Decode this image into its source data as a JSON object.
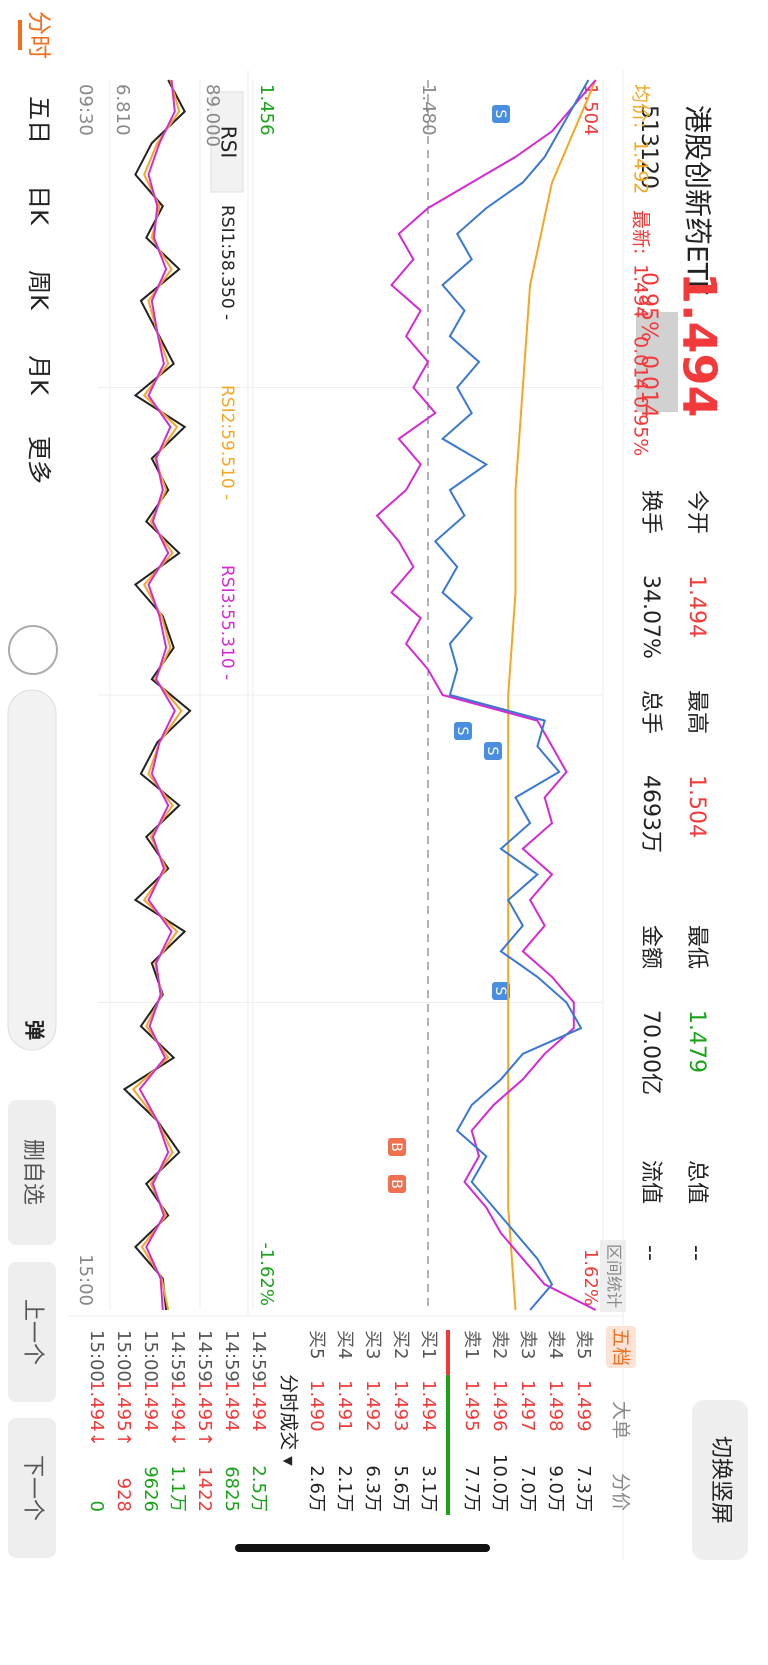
{
  "header": {
    "name": "港股创新药ETF",
    "price": "1.494",
    "code": "513120",
    "change_pct": "0.95%",
    "change": "0.014",
    "stats": [
      {
        "label": "今开",
        "value": "1.494"
      },
      {
        "label": "换手",
        "value": "34.07%"
      },
      {
        "label": "最高",
        "value": "1.504"
      },
      {
        "label": "总手",
        "value": "4693万"
      },
      {
        "label": "最低",
        "value": "1.479"
      },
      {
        "label": "金额",
        "value": "70.00亿"
      },
      {
        "label": "总值",
        "value": "--"
      },
      {
        "label": "流值",
        "value": "--"
      }
    ],
    "button": "切换竖屏"
  },
  "legend": {
    "avg_label": "均价:",
    "avg": "1.492",
    "last_label": "最新:",
    "last": "1.494",
    "change": "0.014",
    "pct": "0.95%"
  },
  "chart": {
    "type": "line",
    "ylim": [
      1.456,
      1.504
    ],
    "yticks": [
      1.504,
      {
        "value": 1.48,
        "label": "1.480"
      },
      1.456
    ],
    "right_labels": [
      "1.62%",
      "-1.62%"
    ],
    "range_button": "区间统计",
    "x_labels": [
      "09:30",
      "15:00"
    ],
    "grid": true,
    "series": [
      {
        "name": "均价",
        "color": "#f5a623",
        "values": [
          1.503,
          1.497,
          1.494,
          1.493,
          1.492,
          1.492,
          1.491,
          1.491,
          1.491,
          1.491,
          1.491,
          1.491,
          1.492
        ]
      },
      {
        "name": "purple",
        "color": "#d42ad4",
        "values": [
          1.503,
          1.5,
          1.497,
          1.492,
          1.486,
          1.48,
          1.476,
          1.478,
          1.475,
          1.479,
          1.477,
          1.48,
          1.478,
          1.481,
          1.476,
          1.479,
          1.477,
          1.473,
          1.476,
          1.478,
          1.475,
          1.479,
          1.477,
          1.48,
          1.482,
          1.495,
          1.497,
          1.499,
          1.496,
          1.497,
          1.493,
          1.497,
          1.494,
          1.496,
          1.493,
          1.497,
          1.5,
          1.5,
          1.496,
          1.493,
          1.489,
          1.486,
          1.487,
          1.485,
          1.488,
          1.49,
          1.493,
          1.496,
          1.503
        ]
      },
      {
        "name": "最新",
        "color": "#3a78d0",
        "values": [
          1.502,
          1.5,
          1.498,
          1.496,
          1.493,
          1.488,
          1.484,
          1.486,
          1.482,
          1.485,
          1.483,
          1.487,
          1.484,
          1.486,
          1.482,
          1.488,
          1.483,
          1.485,
          1.481,
          1.484,
          1.482,
          1.486,
          1.483,
          1.484,
          1.483,
          1.496,
          1.495,
          1.498,
          1.492,
          1.494,
          1.49,
          1.495,
          1.491,
          1.493,
          1.49,
          1.495,
          1.499,
          1.501,
          1.493,
          1.49,
          1.486,
          1.484,
          1.488,
          1.486,
          1.489,
          1.492,
          1.495,
          1.497,
          1.494
        ]
      }
    ]
  },
  "rsi": {
    "selector": "RSI",
    "legend": [
      "RSI1:58.350 -",
      "RSI2:59.510 -",
      "RSI3:55.310 -"
    ],
    "ylim": [
      6.81,
      89
    ],
    "yticks": [
      {
        "value": 89,
        "label": "89.000"
      },
      {
        "value": 6.81,
        "label": "6.810"
      }
    ],
    "series": [
      {
        "name": "RSI1",
        "color": "#222222",
        "values": [
          60,
          75,
          45,
          30,
          55,
          40,
          70,
          35,
          50,
          65,
          30,
          75,
          45,
          60,
          40,
          70,
          30,
          55,
          65,
          45,
          80,
          50,
          35,
          70,
          40,
          60,
          30,
          75,
          45,
          55,
          35,
          65,
          20,
          50,
          70,
          40,
          60,
          30,
          55,
          58
        ]
      },
      {
        "name": "RSI2",
        "color": "#f5a623",
        "values": [
          62,
          70,
          50,
          38,
          52,
          45,
          63,
          42,
          50,
          60,
          38,
          68,
          48,
          58,
          44,
          64,
          38,
          54,
          62,
          48,
          72,
          52,
          42,
          64,
          44,
          58,
          38,
          68,
          48,
          54,
          40,
          60,
          28,
          50,
          64,
          44,
          58,
          36,
          54,
          60
        ]
      },
      {
        "name": "RSI3",
        "color": "#d42ad4",
        "values": [
          63,
          66,
          52,
          42,
          50,
          47,
          58,
          45,
          50,
          56,
          42,
          62,
          49,
          55,
          46,
          60,
          42,
          52,
          58,
          49,
          66,
          52,
          45,
          60,
          46,
          56,
          42,
          63,
          49,
          53,
          43,
          57,
          34,
          50,
          60,
          46,
          56,
          40,
          53,
          55
        ]
      }
    ]
  },
  "order_book": {
    "tabs": [
      "五档",
      "大单",
      "分价"
    ],
    "asks": [
      [
        "卖5",
        "1.499",
        "7.3万"
      ],
      [
        "卖4",
        "1.498",
        "9.0万"
      ],
      [
        "卖3",
        "1.497",
        "7.0万"
      ],
      [
        "卖2",
        "1.496",
        "10.0万"
      ],
      [
        "卖1",
        "1.495",
        "7.7万"
      ]
    ],
    "bids": [
      [
        "买1",
        "1.494",
        "3.1万"
      ],
      [
        "买2",
        "1.493",
        "5.6万"
      ],
      [
        "买3",
        "1.492",
        "6.3万"
      ],
      [
        "买4",
        "1.491",
        "2.1万"
      ],
      [
        "买5",
        "1.490",
        "2.6万"
      ]
    ]
  },
  "trades": {
    "title": "分时成交 ▾",
    "rows": [
      {
        "time": "14:59",
        "price": "1.494",
        "volume": "2.5万",
        "color": "#1aa31a"
      },
      {
        "time": "14:59",
        "price": "1.494",
        "volume": "6825",
        "color": "#1aa31a"
      },
      {
        "time": "14:59",
        "price": "1.495↑",
        "volume": "1422",
        "color": "#f23a3a"
      },
      {
        "time": "14:59",
        "price": "1.494↓",
        "volume": "1.1万",
        "color": "#1aa31a"
      },
      {
        "time": "15:00",
        "price": "1.494",
        "volume": "9626",
        "color": "#1aa31a"
      },
      {
        "time": "15:00",
        "price": "1.495↑",
        "volume": "928",
        "color": "#f23a3a"
      },
      {
        "time": "15:00",
        "price": "1.494↓",
        "volume": "0",
        "color": "#1aa31a"
      }
    ]
  },
  "tabs": [
    "分时",
    "五日",
    "日K",
    "周K",
    "月K",
    "更多"
  ],
  "danmaku": "弹",
  "actions": [
    "删自选",
    "上一个",
    "下一个"
  ]
}
